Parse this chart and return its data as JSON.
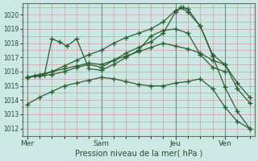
{
  "title": "",
  "xlabel": "Pression niveau de la mer( hPa )",
  "ylim": [
    1011.5,
    1020.8
  ],
  "yticks": [
    1012,
    1013,
    1014,
    1015,
    1016,
    1017,
    1018,
    1019,
    1020
  ],
  "xlim": [
    -0.2,
    9.2
  ],
  "bg_color": "#cce8e4",
  "grid_color": "#d4a0a0",
  "line_color": "#2d5e30",
  "day_labels": [
    "Mer",
    "Sam",
    "Jeu",
    "Ven"
  ],
  "day_positions": [
    0,
    3,
    6,
    8
  ],
  "vline_positions": [
    0,
    3,
    6,
    8
  ],
  "lines": [
    {
      "x": [
        0.0,
        0.5,
        1.0,
        1.5,
        2.0,
        2.5,
        3.0,
        3.5,
        4.0,
        4.5,
        5.0,
        5.5,
        6.0,
        6.3,
        6.5,
        7.0,
        7.5,
        8.0,
        8.5,
        9.0
      ],
      "y": [
        1015.6,
        1015.8,
        1016.0,
        1016.4,
        1016.8,
        1017.2,
        1017.5,
        1018.0,
        1018.4,
        1018.7,
        1019.0,
        1019.5,
        1020.3,
        1020.5,
        1020.4,
        1019.2,
        1017.2,
        1016.5,
        1015.2,
        1014.2
      ]
    },
    {
      "x": [
        0.0,
        0.5,
        1.0,
        1.5,
        2.0,
        2.5,
        3.0,
        3.5,
        4.0,
        4.5,
        5.0,
        5.5,
        6.0,
        6.2,
        6.5,
        7.0,
        7.5,
        8.0,
        8.5,
        9.0
      ],
      "y": [
        1015.6,
        1015.7,
        1015.8,
        1016.0,
        1016.3,
        1016.5,
        1016.3,
        1016.8,
        1017.3,
        1017.7,
        1018.1,
        1018.7,
        1020.2,
        1020.5,
        1020.2,
        1019.2,
        1017.1,
        1014.9,
        1013.2,
        1012.0
      ]
    },
    {
      "x": [
        0.0,
        0.5,
        1.0,
        1.5,
        2.0,
        2.5,
        3.0,
        3.5,
        4.0,
        4.5,
        5.0,
        5.5,
        6.0,
        6.5,
        7.0,
        7.5,
        8.0,
        8.5,
        9.0
      ],
      "y": [
        1015.6,
        1015.7,
        1016.0,
        1016.2,
        1016.4,
        1016.6,
        1016.5,
        1016.8,
        1017.1,
        1017.4,
        1017.7,
        1018.0,
        1017.8,
        1017.6,
        1017.3,
        1016.8,
        1016.5,
        1014.8,
        1013.8
      ]
    },
    {
      "x": [
        0.0,
        0.3,
        0.7,
        1.0,
        1.3,
        1.6,
        2.0,
        2.5,
        3.0,
        3.5,
        4.0,
        4.5,
        5.0,
        5.5,
        6.0,
        6.5,
        7.0,
        7.5,
        8.0
      ],
      "y": [
        1015.6,
        1015.7,
        1015.8,
        1018.3,
        1018.1,
        1017.8,
        1018.3,
        1016.2,
        1016.1,
        1016.5,
        1017.0,
        1017.5,
        1018.5,
        1018.9,
        1019.0,
        1018.7,
        1017.2,
        1016.3,
        1016.0
      ]
    },
    {
      "x": [
        0.0,
        0.5,
        1.0,
        1.5,
        2.0,
        2.5,
        3.0,
        3.5,
        4.0,
        4.5,
        5.0,
        5.5,
        6.0,
        6.5,
        7.0,
        7.5,
        8.0,
        8.5,
        9.0
      ],
      "y": [
        1013.7,
        1014.2,
        1014.6,
        1015.0,
        1015.2,
        1015.4,
        1015.6,
        1015.5,
        1015.3,
        1015.1,
        1015.0,
        1015.0,
        1015.2,
        1015.3,
        1015.5,
        1014.8,
        1013.5,
        1012.5,
        1012.0
      ]
    }
  ]
}
